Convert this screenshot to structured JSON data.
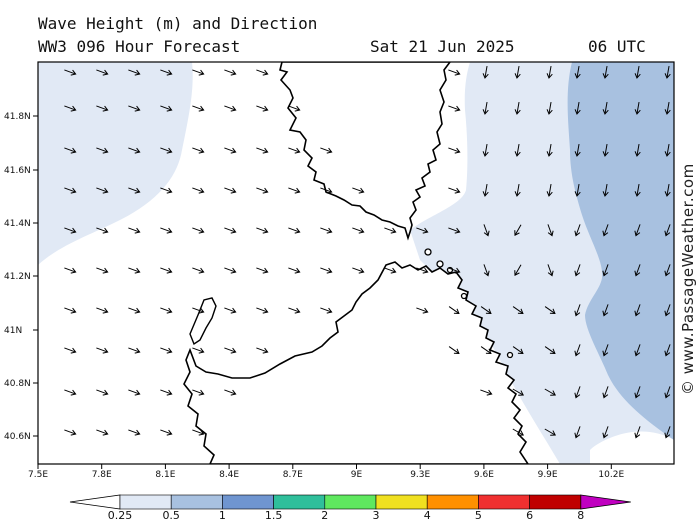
{
  "header": {
    "title": "Wave Height (m) and Direction",
    "subtitle": "WW3 096 Hour Forecast",
    "date": "Sat 21 Jun 2025",
    "time": "06 UTC"
  },
  "map": {
    "lon_ticks": [
      "7.5E",
      "7.8E",
      "8.1E",
      "8.4E",
      "8.7E",
      "9E",
      "9.3E",
      "9.6E",
      "9.9E",
      "10.2E"
    ],
    "lat_ticks": [
      "41.8N",
      "41.6N",
      "41.4N",
      "41.2N",
      "41N",
      "40.8N",
      "40.6N"
    ],
    "colors": {
      "land": "#ffffff",
      "band_025_05": "#e1e9f5",
      "band_05_1": "#a8c1e0",
      "coast": "#000000"
    },
    "watermark": "© www.PassageWeather.com"
  },
  "colorbar": {
    "labels": [
      "0.25",
      "0.5",
      "1",
      "1.5",
      "2",
      "3",
      "4",
      "5",
      "6",
      "8"
    ],
    "colors": [
      "#ffffff",
      "#e1e9f5",
      "#a8c1e0",
      "#6f95d0",
      "#2fbf9b",
      "#5fe85f",
      "#f0e020",
      "#ff9000",
      "#f03030",
      "#c00000",
      "#c000c0"
    ]
  }
}
